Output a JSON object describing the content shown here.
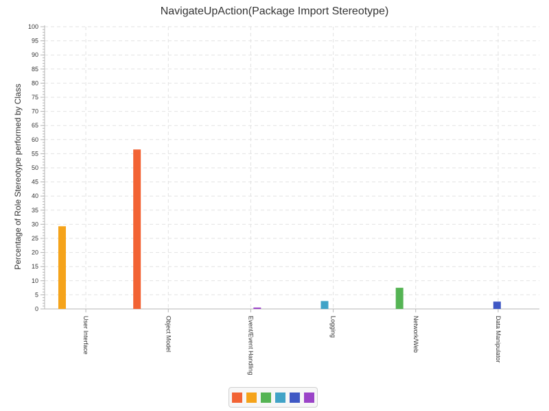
{
  "chart_data": {
    "type": "bar",
    "title": "NavigateUpAction(Package Import Stereotype)",
    "xlabel": "",
    "ylabel": "Percentage of Role Stereotype performed by Class",
    "ylim": [
      0,
      100
    ],
    "y_major_step": 5,
    "y_minor_step": 1,
    "grid": true,
    "legend_position": "bottom",
    "categories": [
      "User Interface",
      "Object Model",
      "Event/Event Handling",
      "Logging",
      "Network/Web",
      "Data Manipulator"
    ],
    "series": [
      {
        "color": "#f26334",
        "values": [
          0,
          56.5,
          0,
          0,
          0,
          0
        ]
      },
      {
        "color": "#f5a31a",
        "values": [
          29.3,
          0,
          0,
          0,
          0,
          0
        ]
      },
      {
        "color": "#55b454",
        "values": [
          0,
          0,
          0,
          0,
          7.5,
          0
        ]
      },
      {
        "color": "#41a3c7",
        "values": [
          0,
          0,
          0,
          2.8,
          0,
          0
        ]
      },
      {
        "color": "#3f58c4",
        "values": [
          0,
          0,
          0,
          0,
          0,
          2.6
        ]
      },
      {
        "color": "#9b44c8",
        "values": [
          0,
          0,
          0.5,
          0,
          0,
          0
        ]
      }
    ]
  }
}
